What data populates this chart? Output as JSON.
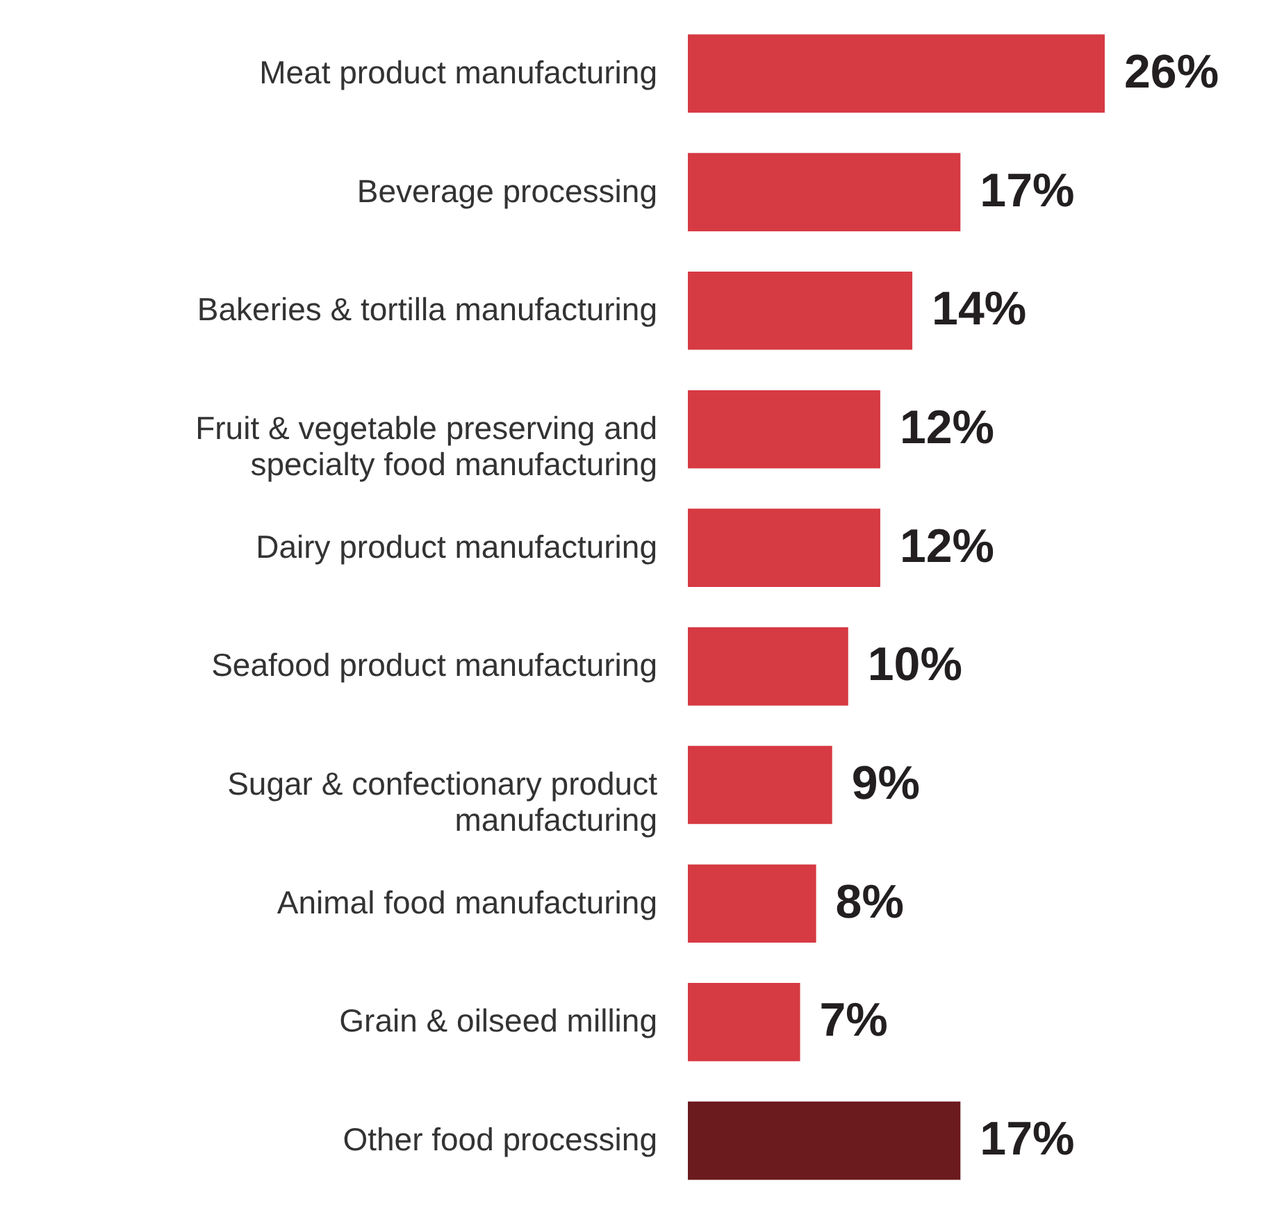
{
  "chart_data": {
    "type": "bar",
    "orientation": "horizontal",
    "categories": [
      "Meat product manufacturing",
      "Beverage processing",
      "Bakeries & tortilla manufacturing",
      "Fruit & vegetable preserving and\nspecialty food manufacturing",
      "Dairy product manufacturing",
      "Seafood product manufacturing",
      "Sugar & confectionary product\nmanufacturing",
      "Animal food manufacturing",
      "Grain & oilseed milling",
      "Other food processing"
    ],
    "values": [
      26,
      17,
      14,
      12,
      12,
      10,
      9,
      8,
      7,
      17
    ],
    "value_labels": [
      "26%",
      "17%",
      "14%",
      "12%",
      "12%",
      "10%",
      "9%",
      "8%",
      "7%",
      "17%"
    ],
    "colors": [
      "#d63a43",
      "#d63a43",
      "#d63a43",
      "#d63a43",
      "#d63a43",
      "#d63a43",
      "#d63a43",
      "#d63a43",
      "#d63a43",
      "#6b1a1e"
    ]
  }
}
